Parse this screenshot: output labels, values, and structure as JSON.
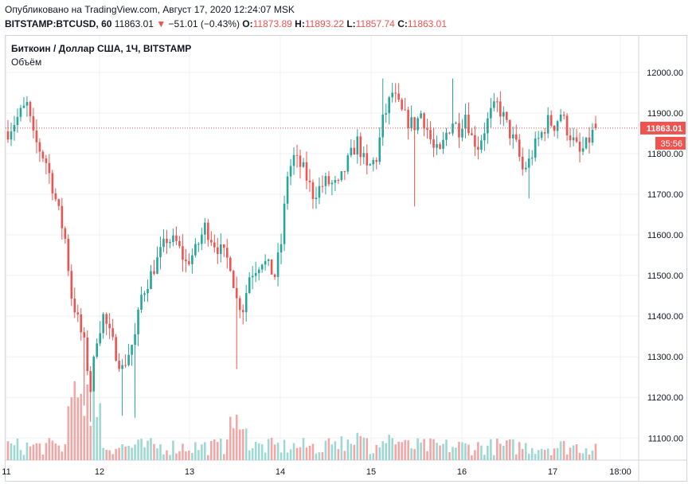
{
  "header": {
    "published": "Опубликовано на TradingView.com, Август 17, 2020 12:24:07 MSK",
    "symbol": "BITSTAMP:BTCUSD, 60",
    "last": "11863.01",
    "arrow": "▼",
    "change": "−51.01 (−0.43%)",
    "o_label": "O:",
    "o_value": "11873.89",
    "h_label": "H:",
    "h_value": "11893.22",
    "l_label": "L:",
    "l_value": "11857.74",
    "c_label": "C:",
    "c_value": "11863.01"
  },
  "legend": {
    "title": "Биткоин / Доллар США, 1Ч, BITSTAMP",
    "volume": "Объём"
  },
  "colors": {
    "up": "#26a69a",
    "down": "#ef5350",
    "up_vol": "#9dd8d3",
    "down_vol": "#f2a7a5"
  },
  "chart_data": {
    "type": "candlestick",
    "title": "Биткоин / Доллар США, 1Ч, BITSTAMP",
    "ylim": [
      11040,
      12100
    ],
    "y_ticks": [
      12000,
      11900,
      11800,
      11700,
      11600,
      11500,
      11400,
      11300,
      11200,
      11100
    ],
    "y_tick_labels": [
      "12000.00",
      "11900.00",
      "11800.00",
      "11700.00",
      "11600.00",
      "11500.00",
      "11400.00",
      "11300.00",
      "11200.00",
      "11100.00"
    ],
    "x_tick_labels": [
      "11",
      "12",
      "13",
      "14",
      "15",
      "16",
      "17",
      "18:00"
    ],
    "last_price_label": "11863.01",
    "last_price": 11863.01,
    "countdown_label": "35:56",
    "anchors": [
      {
        "i": 0,
        "v": 11855
      },
      {
        "i": 4,
        "v": 11900
      },
      {
        "i": 6,
        "v": 11920
      },
      {
        "i": 8,
        "v": 11840
      },
      {
        "i": 12,
        "v": 11780
      },
      {
        "i": 14,
        "v": 11720
      },
      {
        "i": 18,
        "v": 11590
      },
      {
        "i": 20,
        "v": 11450
      },
      {
        "i": 24,
        "v": 11330
      },
      {
        "i": 26,
        "v": 11220
      },
      {
        "i": 28,
        "v": 11350
      },
      {
        "i": 30,
        "v": 11400
      },
      {
        "i": 34,
        "v": 11310
      },
      {
        "i": 36,
        "v": 11270
      },
      {
        "i": 40,
        "v": 11350
      },
      {
        "i": 42,
        "v": 11450
      },
      {
        "i": 46,
        "v": 11520
      },
      {
        "i": 50,
        "v": 11590
      },
      {
        "i": 53,
        "v": 11580
      },
      {
        "i": 56,
        "v": 11530
      },
      {
        "i": 59,
        "v": 11560
      },
      {
        "i": 62,
        "v": 11620
      },
      {
        "i": 65,
        "v": 11580
      },
      {
        "i": 70,
        "v": 11530
      },
      {
        "i": 72,
        "v": 11440
      },
      {
        "i": 74,
        "v": 11420
      },
      {
        "i": 76,
        "v": 11500
      },
      {
        "i": 80,
        "v": 11540
      },
      {
        "i": 84,
        "v": 11500
      },
      {
        "i": 86,
        "v": 11580
      },
      {
        "i": 88,
        "v": 11750
      },
      {
        "i": 90,
        "v": 11790
      },
      {
        "i": 93,
        "v": 11760
      },
      {
        "i": 96,
        "v": 11700
      },
      {
        "i": 100,
        "v": 11730
      },
      {
        "i": 104,
        "v": 11720
      },
      {
        "i": 107,
        "v": 11780
      },
      {
        "i": 110,
        "v": 11830
      },
      {
        "i": 113,
        "v": 11760
      },
      {
        "i": 116,
        "v": 11790
      },
      {
        "i": 118,
        "v": 11880
      },
      {
        "i": 121,
        "v": 11950
      },
      {
        "i": 124,
        "v": 11900
      },
      {
        "i": 126,
        "v": 11880
      },
      {
        "i": 128,
        "v": 11870
      },
      {
        "i": 130,
        "v": 11900
      },
      {
        "i": 132,
        "v": 11860
      },
      {
        "i": 134,
        "v": 11810
      },
      {
        "i": 136,
        "v": 11800
      },
      {
        "i": 138,
        "v": 11850
      },
      {
        "i": 140,
        "v": 11880
      },
      {
        "i": 142,
        "v": 11860
      },
      {
        "i": 144,
        "v": 11900
      },
      {
        "i": 146,
        "v": 11840
      },
      {
        "i": 148,
        "v": 11820
      },
      {
        "i": 150,
        "v": 11860
      },
      {
        "i": 152,
        "v": 11900
      },
      {
        "i": 154,
        "v": 11920
      },
      {
        "i": 156,
        "v": 11890
      },
      {
        "i": 158,
        "v": 11850
      },
      {
        "i": 160,
        "v": 11820
      },
      {
        "i": 162,
        "v": 11760
      },
      {
        "i": 164,
        "v": 11780
      },
      {
        "i": 166,
        "v": 11820
      },
      {
        "i": 168,
        "v": 11850
      },
      {
        "i": 170,
        "v": 11880
      },
      {
        "i": 172,
        "v": 11870
      },
      {
        "i": 174,
        "v": 11900
      },
      {
        "i": 176,
        "v": 11860
      },
      {
        "i": 178,
        "v": 11830
      },
      {
        "i": 180,
        "v": 11800
      },
      {
        "i": 182,
        "v": 11820
      },
      {
        "i": 184,
        "v": 11850
      },
      {
        "i": 185,
        "v": 11863
      }
    ]
  }
}
